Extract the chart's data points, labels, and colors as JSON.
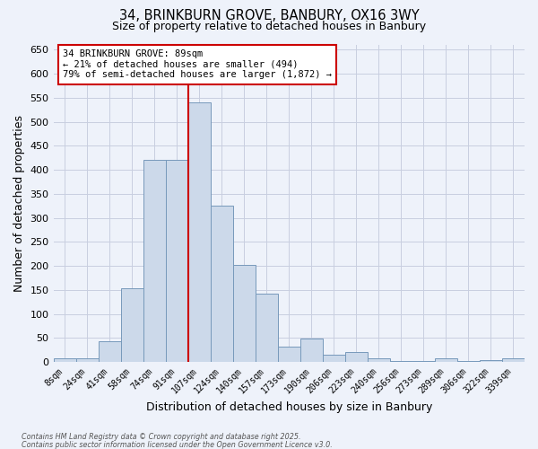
{
  "title_line1": "34, BRINKBURN GROVE, BANBURY, OX16 3WY",
  "title_line2": "Size of property relative to detached houses in Banbury",
  "xlabel": "Distribution of detached houses by size in Banbury",
  "ylabel": "Number of detached properties",
  "bin_labels": [
    "8sqm",
    "24sqm",
    "41sqm",
    "58sqm",
    "74sqm",
    "91sqm",
    "107sqm",
    "124sqm",
    "140sqm",
    "157sqm",
    "173sqm",
    "190sqm",
    "206sqm",
    "223sqm",
    "240sqm",
    "256sqm",
    "273sqm",
    "289sqm",
    "306sqm",
    "322sqm",
    "339sqm"
  ],
  "bar_heights": [
    8,
    8,
    44,
    153,
    420,
    420,
    540,
    325,
    203,
    143,
    33,
    49,
    15,
    20,
    8,
    3,
    2,
    7,
    2,
    5,
    7
  ],
  "bar_color": "#ccd9ea",
  "bar_edge_color": "#7799bb",
  "property_line_x": 5.5,
  "annotation_line1": "34 BRINKBURN GROVE: 89sqm",
  "annotation_line2": "← 21% of detached houses are smaller (494)",
  "annotation_line3": "79% of semi-detached houses are larger (1,872) →",
  "annotation_box_color": "#ffffff",
  "annotation_box_edge": "#cc0000",
  "vline_color": "#cc0000",
  "ylim": [
    0,
    660
  ],
  "yticks": [
    0,
    50,
    100,
    150,
    200,
    250,
    300,
    350,
    400,
    450,
    500,
    550,
    600,
    650
  ],
  "footnote1": "Contains HM Land Registry data © Crown copyright and database right 2025.",
  "footnote2": "Contains public sector information licensed under the Open Government Licence v3.0.",
  "bg_color": "#eef2fa",
  "grid_color": "#c8cee0"
}
